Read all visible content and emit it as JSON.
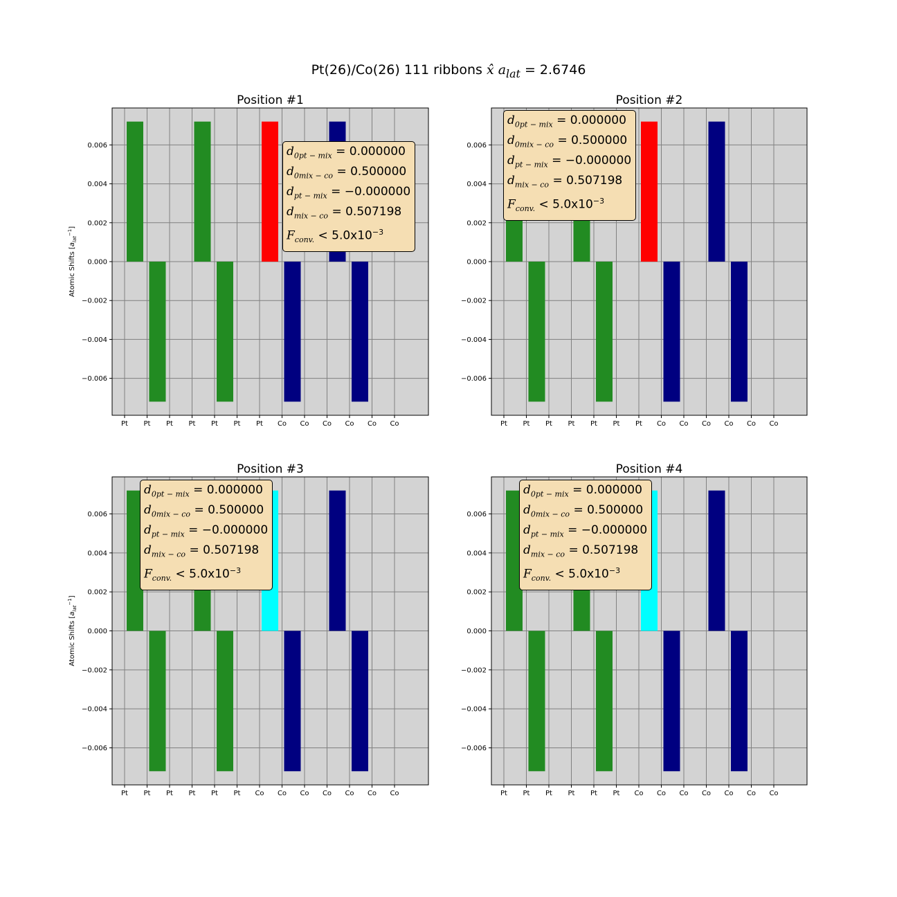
{
  "figure": {
    "title_prefix": "Pt(26)/Co(26) 111 ribbons",
    "title_math": "x̂ a",
    "title_sub": "lat",
    "title_value": " = 2.6746"
  },
  "colors": {
    "background": "#d3d3d3",
    "grid": "#808080",
    "pt": "#228b22",
    "co": "#000080",
    "highlight_red": "#ff0000",
    "highlight_cyan": "#00ffff",
    "box_fill": "#f5deb3"
  },
  "ylabel": "Atomic Shifts [a_lat^-1]",
  "y_ticks": [
    "0.006",
    "0.004",
    "0.002",
    "0.000",
    "−0.002",
    "−0.004",
    "−0.006"
  ],
  "infobox": {
    "line1_sym": "d",
    "line1_sub": "0pt − mix",
    "line1_val": " = 0.000000",
    "line2_sym": "d",
    "line2_sub": "0mix − co",
    "line2_val": " = 0.500000",
    "line3_sym": "d",
    "line3_sub": "pt − mix",
    "line3_val": " = −0.000000",
    "line4_sym": "d",
    "line4_sub": "mix − co",
    "line4_val": " = 0.507198",
    "line5_sym": "F",
    "line5_sub": "conv.",
    "line5_val": " < 5.0x10",
    "line5_exp": "−3"
  },
  "chart_data": [
    {
      "type": "bar",
      "title": "Position #1",
      "ylabel": "Atomic Shifts [a_lat^-1]",
      "ylim": [
        -0.0079,
        0.0079
      ],
      "categories": [
        "Pt",
        "Pt",
        "Pt",
        "Pt",
        "Pt",
        "Pt",
        "Pt",
        "Co",
        "Co",
        "Co",
        "Co",
        "Co",
        "Co"
      ],
      "values": [
        0.0072,
        -0.0072,
        0,
        0.0072,
        -0.0072,
        0,
        0.0072,
        -0.0072,
        0,
        0.0072,
        -0.0072,
        0,
        0
      ],
      "bar_colors": [
        "#228b22",
        "#228b22",
        "#228b22",
        "#228b22",
        "#228b22",
        "#228b22",
        "#ff0000",
        "#000080",
        "#000080",
        "#000080",
        "#000080",
        "#000080",
        "#000080"
      ],
      "grid": true
    },
    {
      "type": "bar",
      "title": "Position #2",
      "ylabel": "",
      "ylim": [
        -0.0079,
        0.0079
      ],
      "categories": [
        "Pt",
        "Pt",
        "Pt",
        "Pt",
        "Pt",
        "Pt",
        "Pt",
        "Co",
        "Co",
        "Co",
        "Co",
        "Co",
        "Co"
      ],
      "values": [
        0.0072,
        -0.0072,
        0,
        0.0072,
        -0.0072,
        0,
        0.0072,
        -0.0072,
        0,
        0.0072,
        -0.0072,
        0,
        0
      ],
      "bar_colors": [
        "#228b22",
        "#228b22",
        "#228b22",
        "#228b22",
        "#228b22",
        "#228b22",
        "#ff0000",
        "#000080",
        "#000080",
        "#000080",
        "#000080",
        "#000080",
        "#000080"
      ],
      "grid": true
    },
    {
      "type": "bar",
      "title": "Position #3",
      "ylabel": "Atomic Shifts [a_lat^-1]",
      "ylim": [
        -0.0079,
        0.0079
      ],
      "categories": [
        "Pt",
        "Pt",
        "Pt",
        "Pt",
        "Pt",
        "Pt",
        "Co",
        "Co",
        "Co",
        "Co",
        "Co",
        "Co",
        "Co"
      ],
      "values": [
        0.0072,
        -0.0072,
        0,
        0.0072,
        -0.0072,
        0,
        0.0072,
        -0.0072,
        0,
        0.0072,
        -0.0072,
        0,
        0
      ],
      "bar_colors": [
        "#228b22",
        "#228b22",
        "#228b22",
        "#228b22",
        "#228b22",
        "#228b22",
        "#00ffff",
        "#000080",
        "#000080",
        "#000080",
        "#000080",
        "#000080",
        "#000080"
      ],
      "grid": true
    },
    {
      "type": "bar",
      "title": "Position #4",
      "ylabel": "",
      "ylim": [
        -0.0079,
        0.0079
      ],
      "categories": [
        "Pt",
        "Pt",
        "Pt",
        "Pt",
        "Pt",
        "Pt",
        "Co",
        "Co",
        "Co",
        "Co",
        "Co",
        "Co",
        "Co"
      ],
      "values": [
        0.0072,
        -0.0072,
        0,
        0.0072,
        -0.0072,
        0,
        0.0072,
        -0.0072,
        0,
        0.0072,
        -0.0072,
        0,
        0
      ],
      "bar_colors": [
        "#228b22",
        "#228b22",
        "#228b22",
        "#228b22",
        "#228b22",
        "#228b22",
        "#00ffff",
        "#000080",
        "#000080",
        "#000080",
        "#000080",
        "#000080",
        "#000080"
      ],
      "grid": true
    }
  ]
}
